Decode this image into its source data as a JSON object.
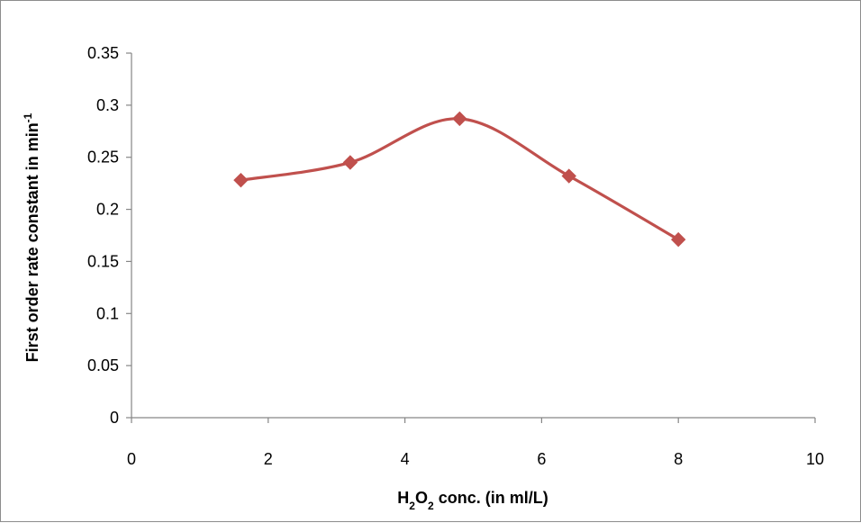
{
  "chart_data": {
    "type": "line",
    "title": "",
    "xlabel": {
      "base": "H",
      "sub1": "2",
      "mid": "O",
      "sub2": "2",
      "rest": " conc. (in ml/L)"
    },
    "ylabel": {
      "text": "First order rate constant in min",
      "sup": "-1"
    },
    "xlim": [
      0,
      10
    ],
    "ylim": [
      0,
      0.35
    ],
    "x_ticks": [
      0,
      2,
      4,
      6,
      8,
      10
    ],
    "y_ticks": [
      0,
      0.05,
      0.1,
      0.15,
      0.2,
      0.25,
      0.3,
      0.35
    ],
    "x_tick_labels": [
      "0",
      "2",
      "4",
      "6",
      "8",
      "10"
    ],
    "y_tick_labels": [
      "0",
      "0.05",
      "0.1",
      "0.15",
      "0.2",
      "0.25",
      "0.3",
      "0.35"
    ],
    "grid": false,
    "legend": "none",
    "smooth": true,
    "marker": "diamond",
    "series": [
      {
        "color": "#c0504d",
        "x": [
          1.6,
          3.2,
          4.8,
          6.4,
          8.0
        ],
        "y": [
          0.228,
          0.245,
          0.287,
          0.232,
          0.171
        ]
      }
    ]
  }
}
